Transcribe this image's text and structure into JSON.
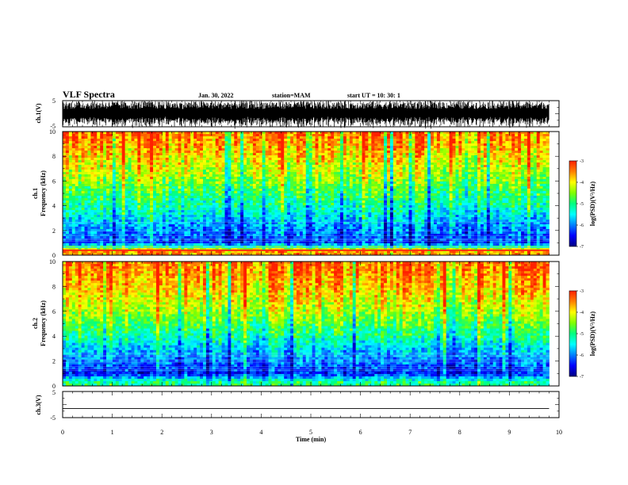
{
  "header": {
    "title": "VLF Spectra",
    "date": "Jan. 30, 2022",
    "station": "station=MAM",
    "start": "start UT =  10: 30: 1"
  },
  "colors": {
    "waveform": "#000000",
    "spectrogram_scale": [
      "#000080",
      "#0000ff",
      "#0080ff",
      "#00ffff",
      "#00ff80",
      "#80ff00",
      "#ffff00",
      "#ff8000",
      "#ff2000"
    ]
  },
  "chart_data": [
    {
      "type": "line",
      "panel": "ch1-waveform",
      "ylabel": "ch.1(V)",
      "ylim": [
        -5,
        5
      ],
      "yticks": [
        "5",
        "-5"
      ],
      "xlim": [
        0,
        10
      ],
      "note": "dense broadband waveform spanning roughly the full ±5 V range"
    },
    {
      "type": "heatmap",
      "panel": "ch1-spectrogram",
      "ylabel_line1": "ch.1",
      "ylabel_line2": "Frequency (kHz)",
      "ylim": [
        0,
        10
      ],
      "yticks": [
        "0",
        "2",
        "4",
        "6",
        "8",
        "10"
      ],
      "xlim": [
        0,
        9.8
      ],
      "colorbar": {
        "label": "log(PSD)(V²/Hz)",
        "range": [
          -7,
          -3
        ],
        "ticks": [
          "-3",
          "-4",
          "-5",
          "-6",
          "-7"
        ]
      },
      "profile_log_psd": [
        {
          "freq_khz": 0.3,
          "value": -3.6
        },
        {
          "freq_khz": 1.0,
          "value": -6.3
        },
        {
          "freq_khz": 2.0,
          "value": -6.0
        },
        {
          "freq_khz": 3.0,
          "value": -5.6
        },
        {
          "freq_khz": 4.0,
          "value": -5.2
        },
        {
          "freq_khz": 5.0,
          "value": -4.9
        },
        {
          "freq_khz": 6.0,
          "value": -4.5
        },
        {
          "freq_khz": 7.0,
          "value": -4.2
        },
        {
          "freq_khz": 8.0,
          "value": -3.9
        },
        {
          "freq_khz": 9.0,
          "value": -3.6
        },
        {
          "freq_khz": 10.0,
          "value": -3.4
        }
      ]
    },
    {
      "type": "heatmap",
      "panel": "ch2-spectrogram",
      "ylabel_line1": "ch.2",
      "ylabel_line2": "Frequency (kHz)",
      "ylim": [
        0,
        10
      ],
      "yticks": [
        "0",
        "2",
        "4",
        "6",
        "8",
        "10"
      ],
      "xlim": [
        0,
        9.8
      ],
      "colorbar": {
        "label": "log(PSD)(V²/Hz)",
        "range": [
          -7,
          -3
        ],
        "ticks": [
          "-3",
          "-4",
          "-5",
          "-6",
          "-7"
        ]
      },
      "profile_log_psd": [
        {
          "freq_khz": 0.3,
          "value": -5.0
        },
        {
          "freq_khz": 1.0,
          "value": -6.4
        },
        {
          "freq_khz": 2.0,
          "value": -6.0
        },
        {
          "freq_khz": 3.0,
          "value": -5.6
        },
        {
          "freq_khz": 4.0,
          "value": -5.1
        },
        {
          "freq_khz": 5.0,
          "value": -4.7
        },
        {
          "freq_khz": 6.0,
          "value": -4.3
        },
        {
          "freq_khz": 7.0,
          "value": -4.0
        },
        {
          "freq_khz": 8.0,
          "value": -3.7
        },
        {
          "freq_khz": 9.0,
          "value": -3.5
        },
        {
          "freq_khz": 10.0,
          "value": -3.3
        }
      ]
    },
    {
      "type": "line",
      "panel": "ch3-waveform",
      "ylabel": "ch.3(V)",
      "ylim": [
        -5,
        5
      ],
      "yticks": [
        "5",
        "-5"
      ],
      "xlim": [
        0,
        10
      ],
      "x": [
        0,
        9.8
      ],
      "y": [
        -1.5,
        -1.5
      ],
      "xlabel": "Time (min)",
      "xticks": [
        "0",
        "1",
        "2",
        "3",
        "4",
        "5",
        "6",
        "7",
        "8",
        "9",
        "10"
      ]
    }
  ]
}
